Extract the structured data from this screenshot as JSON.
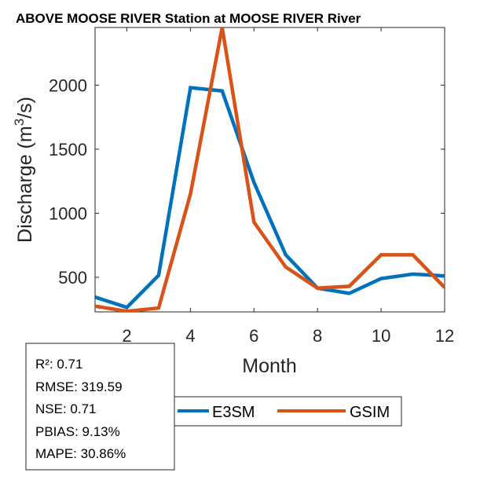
{
  "chart_data": {
    "type": "line",
    "title": "ABOVE MOOSE RIVER  Station at  MOOSE RIVER  River",
    "xlabel": "Month",
    "ylabel_prefix": "Discharge (m",
    "ylabel_sup": "3",
    "ylabel_suffix": "/s)",
    "xlim": [
      1,
      12
    ],
    "ylim": [
      230,
      2450
    ],
    "xticks": [
      2,
      4,
      6,
      8,
      10,
      12
    ],
    "yticks": [
      500,
      1000,
      1500,
      2000
    ],
    "x": [
      1,
      2,
      3,
      4,
      5,
      6,
      7,
      8,
      9,
      10,
      11,
      12
    ],
    "series": [
      {
        "name": "E3SM",
        "color": "#0072BD",
        "values": [
          345,
          265,
          515,
          1980,
          1955,
          1240,
          675,
          415,
          375,
          490,
          525,
          510
        ]
      },
      {
        "name": "GSIM",
        "color": "#D95319",
        "values": [
          275,
          235,
          260,
          1150,
          2450,
          930,
          580,
          415,
          430,
          675,
          675,
          420
        ]
      }
    ]
  },
  "stats": {
    "r2": "R²: 0.71",
    "rmse": "RMSE: 319.59",
    "nse": "NSE: 0.71",
    "pbias": "PBIAS: 9.13%",
    "mape": "MAPE: 30.86%"
  }
}
